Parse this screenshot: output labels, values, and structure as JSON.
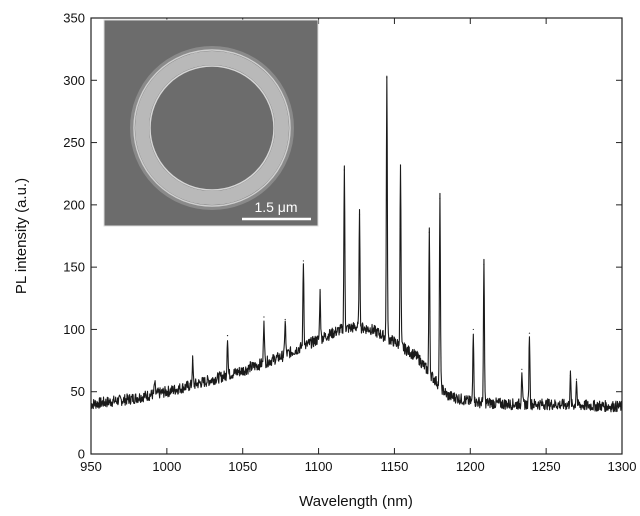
{
  "chart_data": {
    "type": "line",
    "title": "",
    "xlabel": "Wavelength (nm)",
    "ylabel": "PL intensity (a.u.)",
    "xlim": [
      950,
      1300
    ],
    "ylim": [
      0,
      350
    ],
    "x_ticks": [
      950,
      1000,
      1050,
      1100,
      1150,
      1200,
      1250,
      1300
    ],
    "y_ticks": [
      0,
      50,
      100,
      150,
      200,
      250,
      300,
      350
    ],
    "grid": false,
    "legend": "none",
    "line_color": "#1a1a1a",
    "baseline": {
      "x": [
        950,
        975,
        1000,
        1025,
        1050,
        1075,
        1100,
        1115,
        1125,
        1135,
        1150,
        1165,
        1175,
        1185,
        1200,
        1225,
        1250,
        1275,
        1300
      ],
      "y": [
        40,
        44,
        50,
        58,
        67,
        78,
        92,
        100,
        102,
        100,
        90,
        78,
        62,
        47,
        42,
        40,
        40,
        39,
        38
      ]
    },
    "peaks": {
      "x": [
        992,
        1017,
        1040,
        1055,
        1064,
        1078,
        1090,
        1101,
        1117,
        1127,
        1145,
        1154,
        1173,
        1180,
        1202,
        1209,
        1234,
        1239,
        1266,
        1270
      ],
      "y": [
        57,
        75,
        95,
        70,
        110,
        108,
        155,
        130,
        228,
        192,
        302,
        232,
        178,
        205,
        100,
        152,
        68,
        97,
        63,
        60
      ]
    }
  },
  "inset": {
    "scale_bar_label": "1.5 μm"
  }
}
